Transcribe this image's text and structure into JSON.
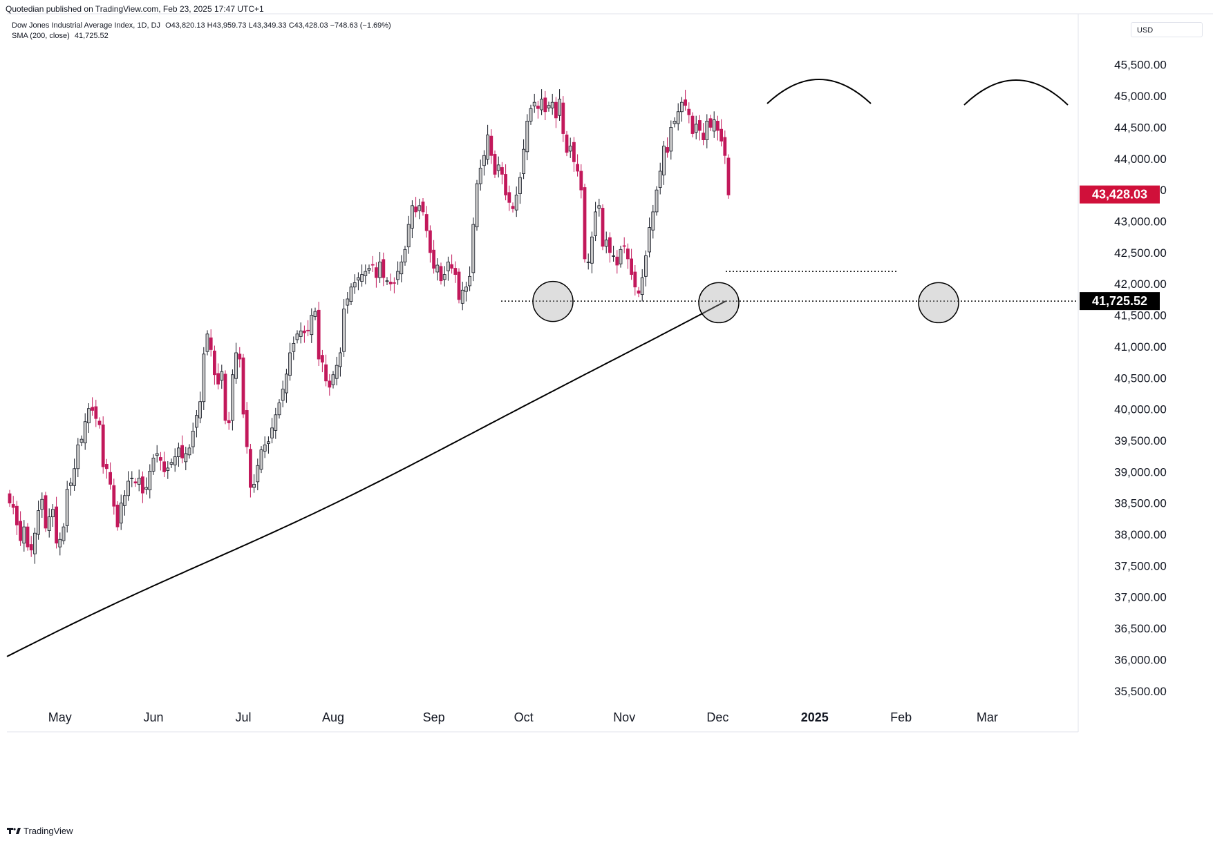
{
  "header": {
    "published_text": "Quotedian published on TradingView.com, Feb 23, 2025 17:47 UTC+1"
  },
  "legend": {
    "instrument": "Dow Jones Industrial Average Index, 1D, DJ",
    "ohlc": "O43,820.13  H43,959.73  L43,349.33  C43,428.03  −748.63 (−1.69%)",
    "indicator": "SMA (200, close)",
    "indicator_value": "41,725.52"
  },
  "currency_label": "USD",
  "footer": {
    "brand": "TradingView"
  },
  "colors": {
    "down": "#c2185b",
    "up_fill": "#c8c8c8",
    "wick": "#131722",
    "last_price_bg": "#d0103a",
    "sma_label_bg": "#000000"
  },
  "chart_data": {
    "type": "candlestick",
    "title": "Dow Jones Industrial Average Index, 1D, DJ",
    "ylim": [
      35200,
      45850
    ],
    "yticks": [
      "35,500.00",
      "36,000.00",
      "36,500.00",
      "37,000.00",
      "37,500.00",
      "38,000.00",
      "38,500.00",
      "39,000.00",
      "39,500.00",
      "40,000.00",
      "40,500.00",
      "41,000.00",
      "41,500.00",
      "42,000.00",
      "42,500.00",
      "43,000.00",
      "43,500.00",
      "44,000.00",
      "44,500.00",
      "45,000.00",
      "45,500.00"
    ],
    "yticks_values": [
      35500,
      36000,
      36500,
      37000,
      37500,
      38000,
      38500,
      39000,
      39500,
      40000,
      40500,
      41000,
      41500,
      42000,
      42500,
      43000,
      43500,
      44000,
      44500,
      45000,
      45500
    ],
    "xticks": [
      "May",
      "Jun",
      "Jul",
      "Aug",
      "Sep",
      "Oct",
      "Nov",
      "Dec",
      "2025",
      "Feb",
      "Mar"
    ],
    "xticks_index": [
      14,
      40,
      65,
      90,
      118,
      143,
      171,
      197,
      224,
      248,
      272
    ],
    "bold_xtick": "2025",
    "last_price_label": "43,428.03",
    "last_price_value": 43428.03,
    "sma_label": "41,725.52",
    "sma_label_value": 41725.52,
    "close_series": [
      38500,
      38430,
      38150,
      37900,
      38120,
      37800,
      37750,
      38020,
      38380,
      38560,
      38100,
      38280,
      38400,
      37860,
      37920,
      38120,
      38720,
      38820,
      39050,
      39430,
      39520,
      39800,
      40010,
      39980,
      39850,
      39750,
      39080,
      39050,
      38800,
      38450,
      38120,
      38500,
      38620,
      38850,
      38900,
      38820,
      38900,
      38660,
      38750,
      39010,
      39220,
      39290,
      39180,
      39000,
      39060,
      39150,
      39240,
      39380,
      39220,
      39290,
      39380,
      39650,
      39900,
      40120,
      40880,
      41200,
      40950,
      40550,
      40400,
      40600,
      39820,
      39780,
      40550,
      40900,
      40800,
      39920,
      39400,
      38750,
      38800,
      39100,
      39350,
      39430,
      39480,
      39700,
      39910,
      40100,
      40320,
      40560,
      40900,
      41050,
      41200,
      41250,
      41220,
      41250,
      41500,
      41560,
      40800,
      40750,
      40450,
      40350,
      40550,
      40700,
      40900,
      41600,
      41760,
      41950,
      42020,
      42100,
      42150,
      42200,
      42250,
      42300,
      42100,
      42350,
      42100,
      42050,
      42000,
      42010,
      42200,
      42350,
      42550,
      42950,
      43250,
      43150,
      43250,
      43150,
      42850,
      42500,
      42250,
      42300,
      42050,
      42150,
      42350,
      42250,
      42150,
      41750,
      41900,
      41950,
      42120,
      42950,
      43600,
      43850,
      44050,
      44380,
      44050,
      43750,
      43900,
      43750,
      43420,
      43300,
      43200,
      43420,
      43700,
      44150,
      44600,
      44800,
      44900,
      44800,
      44950,
      44750,
      44850,
      44900,
      44650,
      44950,
      44400,
      44100,
      44200,
      43950,
      43800,
      43500,
      42400,
      42350,
      42750,
      43150,
      43250,
      42600,
      42700,
      42500,
      42450,
      42300,
      42550,
      42600,
      42400,
      42150,
      41950,
      41850,
      42100,
      42450,
      42900,
      43150,
      43500,
      43800,
      44200,
      44100,
      44500,
      44600,
      44750,
      44900,
      44850,
      44700,
      44400,
      44550,
      44450,
      44300,
      44600,
      44500,
      44620,
      44450,
      44280,
      44050,
      43420
    ],
    "sma_start": 36050,
    "sma_end": 41725.52
  }
}
